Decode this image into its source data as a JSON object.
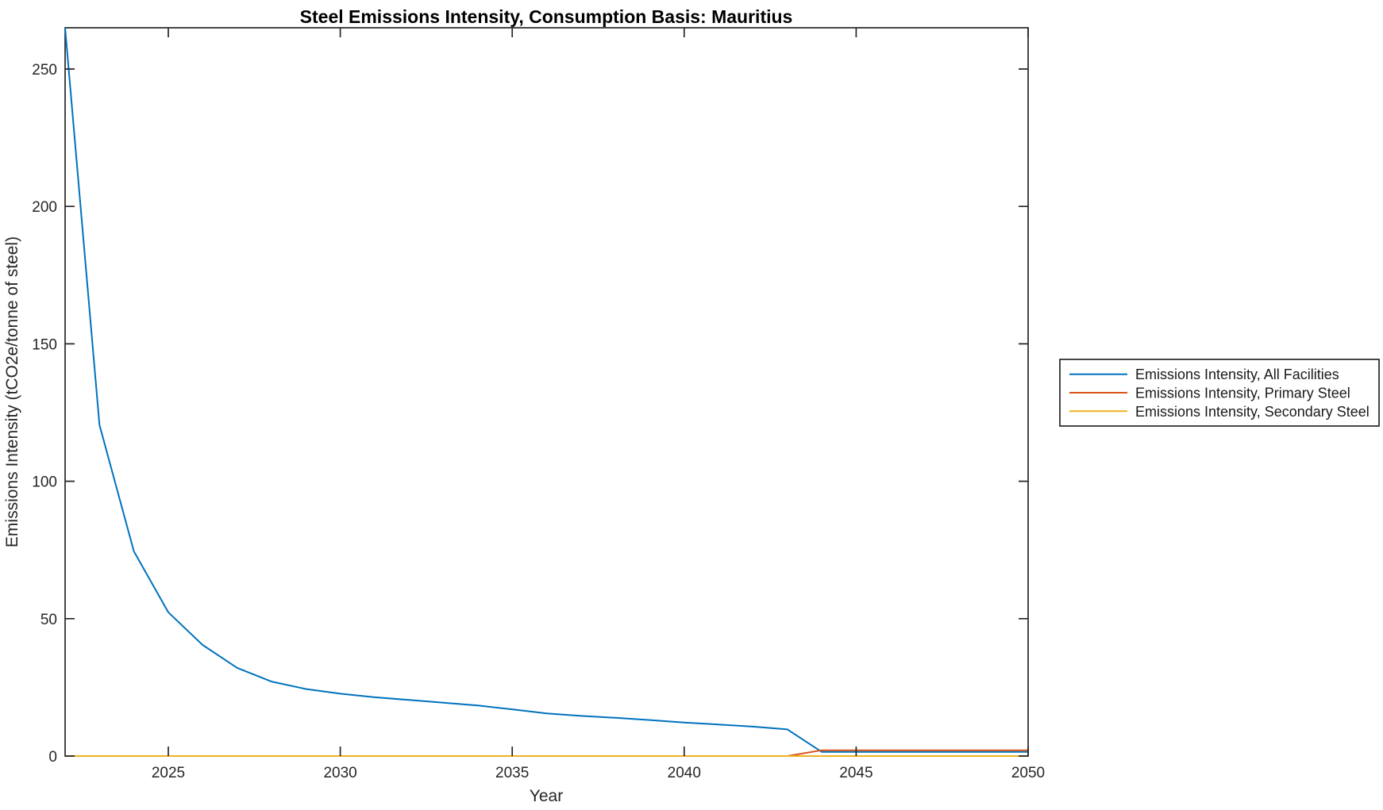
{
  "chart_data": {
    "type": "line",
    "title": "Steel Emissions Intensity, Consumption Basis: Mauritius",
    "xlabel": "Year",
    "ylabel": "Emissions Intensity (tCO2e/tonne of steel)",
    "xlim": [
      2022,
      2050
    ],
    "ylim": [
      0,
      265
    ],
    "x_ticks": [
      2025,
      2030,
      2035,
      2040,
      2045,
      2050
    ],
    "y_ticks": [
      0,
      50,
      100,
      150,
      200,
      250
    ],
    "grid": false,
    "legend_position": "outside-right",
    "background_color": "#ffffff",
    "axis_color": "#262626",
    "x": [
      2022,
      2023,
      2024,
      2025,
      2026,
      2027,
      2028,
      2029,
      2030,
      2031,
      2032,
      2033,
      2034,
      2035,
      2036,
      2037,
      2038,
      2039,
      2040,
      2041,
      2042,
      2043,
      2044,
      2045,
      2046,
      2047,
      2048,
      2049,
      2050
    ],
    "series": [
      {
        "name": "Emissions Intensity, All Facilities",
        "color": "#0072BD",
        "values": [
          265,
          120.5,
          74.5,
          52.3,
          40.4,
          32.1,
          27.1,
          24.4,
          22.7,
          21.4,
          20.4,
          19.4,
          18.4,
          17.0,
          15.5,
          14.6,
          13.9,
          13.1,
          12.2,
          11.5,
          10.7,
          9.7,
          1.5,
          1.5,
          1.5,
          1.5,
          1.5,
          1.5,
          1.5
        ]
      },
      {
        "name": "Emissions Intensity, Primary Steel",
        "color": "#D95319",
        "values": [
          0,
          0,
          0,
          0,
          0,
          0,
          0,
          0,
          0,
          0,
          0,
          0,
          0,
          0,
          0,
          0,
          0,
          0,
          0,
          0,
          0,
          0,
          2.1,
          2.1,
          2.1,
          2.1,
          2.1,
          2.1,
          2.1
        ]
      },
      {
        "name": "Emissions Intensity, Secondary Steel",
        "color": "#EDB120",
        "values": [
          0,
          0,
          0,
          0,
          0,
          0,
          0,
          0,
          0,
          0,
          0,
          0,
          0,
          0,
          0,
          0,
          0,
          0,
          0,
          0,
          0,
          0,
          0,
          0,
          0,
          0,
          0,
          0,
          0
        ]
      }
    ]
  }
}
